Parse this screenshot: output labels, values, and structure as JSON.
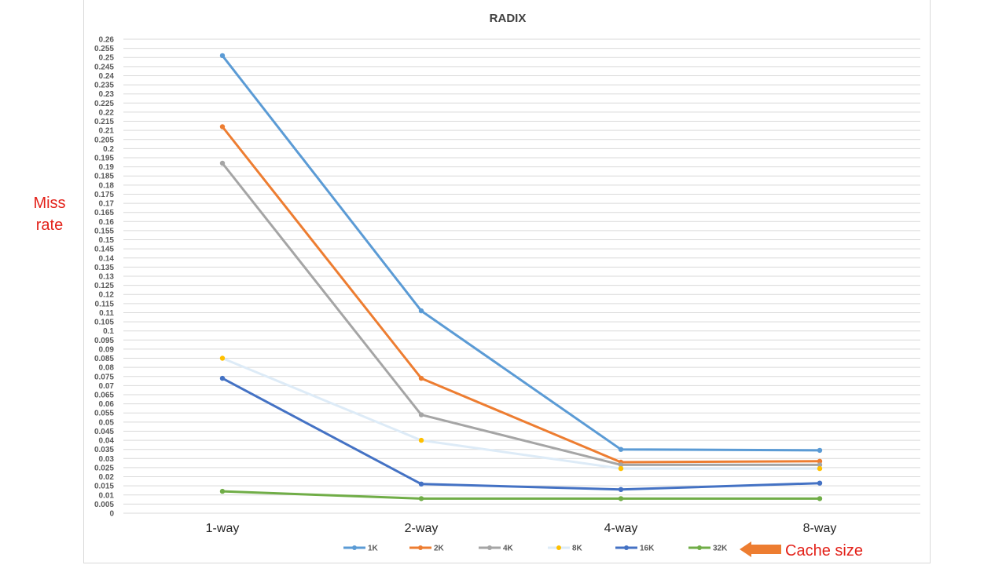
{
  "side_label": {
    "line1": "Miss",
    "line2": "rate"
  },
  "annotation": {
    "text": "Cache size",
    "arrow_color": "#ed7d31"
  },
  "chart_data": {
    "type": "line",
    "title": "RADIX",
    "xlabel": "",
    "ylabel": "",
    "categories": [
      "1-way",
      "2-way",
      "4-way",
      "8-way"
    ],
    "ylim": [
      0,
      0.26
    ],
    "ytick_step": 0.005,
    "grid": true,
    "legend_position": "bottom",
    "series": [
      {
        "name": "1K",
        "color": "#5b9bd5",
        "values": [
          0.251,
          0.111,
          0.035,
          0.0345
        ]
      },
      {
        "name": "2K",
        "color": "#ed7d31",
        "values": [
          0.212,
          0.074,
          0.028,
          0.0285
        ]
      },
      {
        "name": "4K",
        "color": "#a5a5a5",
        "values": [
          0.192,
          0.054,
          0.0265,
          0.0265
        ]
      },
      {
        "name": "8K",
        "color": "#ddebf7",
        "marker_color": "#ffc000",
        "values": [
          0.085,
          0.04,
          0.0245,
          0.0245
        ]
      },
      {
        "name": "16K",
        "color": "#4472c4",
        "values": [
          0.074,
          0.016,
          0.013,
          0.0165
        ]
      },
      {
        "name": "32K",
        "color": "#70ad47",
        "values": [
          0.012,
          0.008,
          0.008,
          0.008
        ]
      }
    ]
  }
}
